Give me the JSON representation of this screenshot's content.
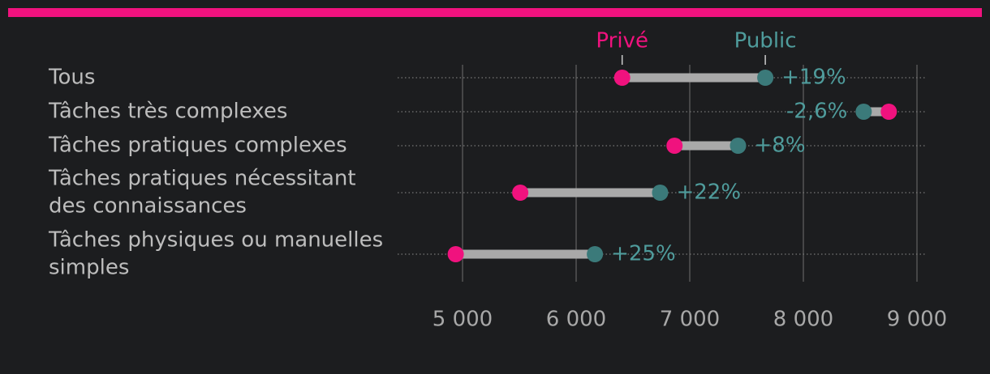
{
  "colors": {
    "background": "#1c1d1f",
    "accent_bar": "#f0127e",
    "prive": "#f0127e",
    "public": "#3b7a7a",
    "public_text": "#4f9c9c",
    "connector": "#a9a9a9",
    "grid": "#555555",
    "text": "#bdbdbd",
    "tick_text": "#a8a8a8"
  },
  "chart_data": {
    "type": "dumbbell",
    "title": "",
    "xlabel": "",
    "ylabel": "",
    "xlim": [
      4930,
      9010
    ],
    "grid": true,
    "legend_placement": "top",
    "x_ticks": [
      {
        "value": 5000,
        "label": "5 000"
      },
      {
        "value": 6000,
        "label": "6 000"
      },
      {
        "value": 7000,
        "label": "7 000"
      },
      {
        "value": 8000,
        "label": "8 000"
      },
      {
        "value": 9000,
        "label": "9 000"
      }
    ],
    "series": [
      {
        "name": "Privé",
        "key": "prive"
      },
      {
        "name": "Public",
        "key": "public"
      }
    ],
    "categories": [
      {
        "lines": [
          "Tous"
        ],
        "prive": 6405,
        "public": 7665,
        "change": "+19%",
        "label_side": "right"
      },
      {
        "lines": [
          "Tâches très complexes"
        ],
        "prive": 8752,
        "public": 8531,
        "change": "-2,6%",
        "label_side": "left"
      },
      {
        "lines": [
          "Tâches pratiques complexes"
        ],
        "prive": 6866,
        "public": 7425,
        "change": "+8%",
        "label_side": "right"
      },
      {
        "lines": [
          "Tâches pratiques nécessitant",
          "des connaissances"
        ],
        "prive": 5508,
        "public": 6739,
        "change": "+22%",
        "label_side": "right"
      },
      {
        "lines": [
          "Tâches physiques ou manuelles",
          "simples"
        ],
        "prive": 4940,
        "public": 6165,
        "change": "+25%",
        "label_side": "right"
      }
    ]
  }
}
